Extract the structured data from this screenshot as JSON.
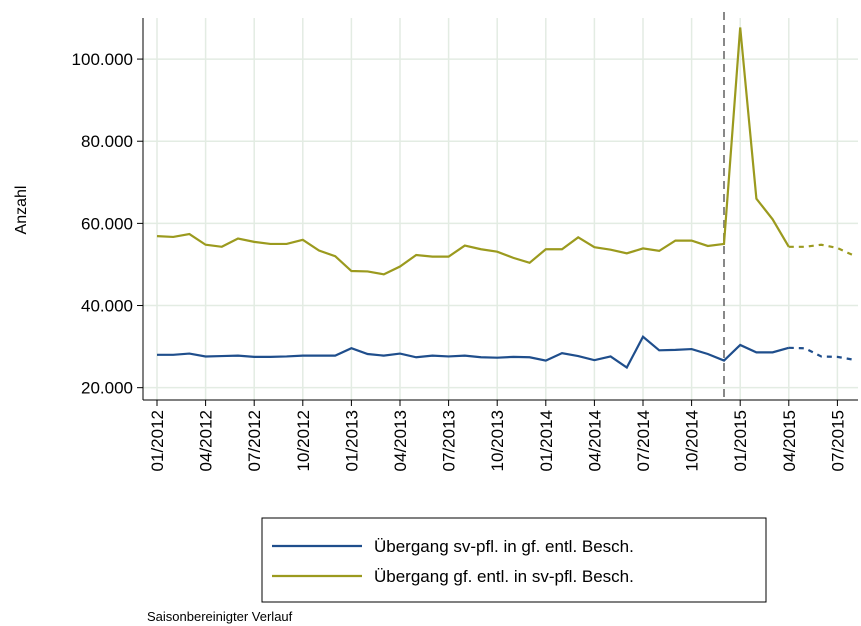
{
  "chart_data": {
    "type": "line",
    "y_label": "Anzahl",
    "footnote": "Saisonbereinigter Verlauf",
    "categories": [
      "01/2012",
      null,
      null,
      "04/2012",
      null,
      null,
      "07/2012",
      null,
      null,
      "10/2012",
      null,
      null,
      "01/2013",
      null,
      null,
      "04/2013",
      null,
      null,
      "07/2013",
      null,
      null,
      "10/2013",
      null,
      null,
      "01/2014",
      null,
      null,
      "04/2014",
      null,
      null,
      "07/2014",
      null,
      null,
      "10/2014",
      null,
      null,
      "01/2015",
      null,
      null,
      "04/2015",
      null,
      null,
      "07/2015",
      null
    ],
    "series": [
      {
        "name": "Übergang sv-pfl. in gf. entl. Besch.",
        "color": "#1f4e8c",
        "dash_start": "04/2015",
        "values": [
          28000,
          28000,
          28300,
          27600,
          27700,
          27800,
          27500,
          27500,
          27600,
          27800,
          27800,
          27800,
          29600,
          28200,
          27800,
          28300,
          27400,
          27800,
          27600,
          27800,
          27400,
          27300,
          27500,
          27400,
          26600,
          28400,
          27700,
          26700,
          27600,
          24900,
          32400,
          29100,
          29200,
          29400,
          28200,
          26600,
          30400,
          28600,
          28600,
          29700,
          29600,
          27600,
          27500,
          26800
        ]
      },
      {
        "name": "Übergang gf. entl. in sv-pfl. Besch.",
        "color": "#9b9a1e",
        "dash_start": "04/2015",
        "values": [
          56900,
          56700,
          57400,
          54800,
          54300,
          56300,
          55500,
          55000,
          55000,
          56000,
          53400,
          52000,
          48400,
          48300,
          47600,
          49500,
          52300,
          51900,
          51900,
          54600,
          53700,
          53100,
          51600,
          50400,
          53700,
          53700,
          56600,
          54200,
          53600,
          52700,
          53900,
          53300,
          55800,
          55800,
          54500,
          55000,
          107700,
          66000,
          61000,
          54300,
          54300,
          54800,
          54000,
          52200
        ]
      }
    ],
    "vline_index": 35,
    "ylim": [
      17000,
      110000
    ],
    "yticks": [
      {
        "value": 20000,
        "label": "20.000"
      },
      {
        "value": 40000,
        "label": "40.000"
      },
      {
        "value": 60000,
        "label": "60.000"
      },
      {
        "value": 80000,
        "label": "80.000"
      },
      {
        "value": 100000,
        "label": "100.000"
      }
    ],
    "grid": true
  }
}
